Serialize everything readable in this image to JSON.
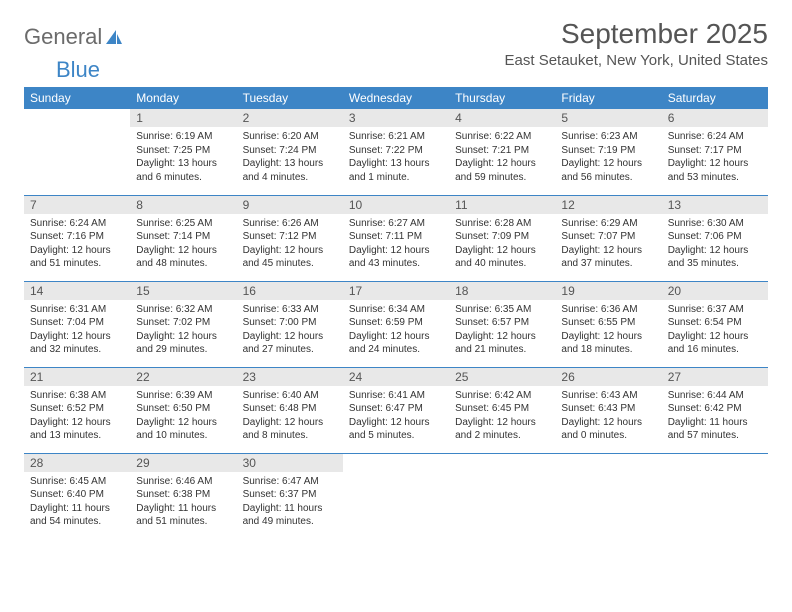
{
  "brand": {
    "part1": "General",
    "part2": "Blue"
  },
  "title": "September 2025",
  "location": "East Setauket, New York, United States",
  "colors": {
    "header_bg": "#3d85c6",
    "header_text": "#ffffff",
    "daynum_bg": "#e8e8e8",
    "border": "#3d85c6",
    "text": "#333333",
    "title_text": "#555555"
  },
  "weekdays": [
    "Sunday",
    "Monday",
    "Tuesday",
    "Wednesday",
    "Thursday",
    "Friday",
    "Saturday"
  ],
  "weeks": [
    [
      {
        "num": "",
        "sunrise": "",
        "sunset": "",
        "daylight": ""
      },
      {
        "num": "1",
        "sunrise": "Sunrise: 6:19 AM",
        "sunset": "Sunset: 7:25 PM",
        "daylight": "Daylight: 13 hours and 6 minutes."
      },
      {
        "num": "2",
        "sunrise": "Sunrise: 6:20 AM",
        "sunset": "Sunset: 7:24 PM",
        "daylight": "Daylight: 13 hours and 4 minutes."
      },
      {
        "num": "3",
        "sunrise": "Sunrise: 6:21 AM",
        "sunset": "Sunset: 7:22 PM",
        "daylight": "Daylight: 13 hours and 1 minute."
      },
      {
        "num": "4",
        "sunrise": "Sunrise: 6:22 AM",
        "sunset": "Sunset: 7:21 PM",
        "daylight": "Daylight: 12 hours and 59 minutes."
      },
      {
        "num": "5",
        "sunrise": "Sunrise: 6:23 AM",
        "sunset": "Sunset: 7:19 PM",
        "daylight": "Daylight: 12 hours and 56 minutes."
      },
      {
        "num": "6",
        "sunrise": "Sunrise: 6:24 AM",
        "sunset": "Sunset: 7:17 PM",
        "daylight": "Daylight: 12 hours and 53 minutes."
      }
    ],
    [
      {
        "num": "7",
        "sunrise": "Sunrise: 6:24 AM",
        "sunset": "Sunset: 7:16 PM",
        "daylight": "Daylight: 12 hours and 51 minutes."
      },
      {
        "num": "8",
        "sunrise": "Sunrise: 6:25 AM",
        "sunset": "Sunset: 7:14 PM",
        "daylight": "Daylight: 12 hours and 48 minutes."
      },
      {
        "num": "9",
        "sunrise": "Sunrise: 6:26 AM",
        "sunset": "Sunset: 7:12 PM",
        "daylight": "Daylight: 12 hours and 45 minutes."
      },
      {
        "num": "10",
        "sunrise": "Sunrise: 6:27 AM",
        "sunset": "Sunset: 7:11 PM",
        "daylight": "Daylight: 12 hours and 43 minutes."
      },
      {
        "num": "11",
        "sunrise": "Sunrise: 6:28 AM",
        "sunset": "Sunset: 7:09 PM",
        "daylight": "Daylight: 12 hours and 40 minutes."
      },
      {
        "num": "12",
        "sunrise": "Sunrise: 6:29 AM",
        "sunset": "Sunset: 7:07 PM",
        "daylight": "Daylight: 12 hours and 37 minutes."
      },
      {
        "num": "13",
        "sunrise": "Sunrise: 6:30 AM",
        "sunset": "Sunset: 7:06 PM",
        "daylight": "Daylight: 12 hours and 35 minutes."
      }
    ],
    [
      {
        "num": "14",
        "sunrise": "Sunrise: 6:31 AM",
        "sunset": "Sunset: 7:04 PM",
        "daylight": "Daylight: 12 hours and 32 minutes."
      },
      {
        "num": "15",
        "sunrise": "Sunrise: 6:32 AM",
        "sunset": "Sunset: 7:02 PM",
        "daylight": "Daylight: 12 hours and 29 minutes."
      },
      {
        "num": "16",
        "sunrise": "Sunrise: 6:33 AM",
        "sunset": "Sunset: 7:00 PM",
        "daylight": "Daylight: 12 hours and 27 minutes."
      },
      {
        "num": "17",
        "sunrise": "Sunrise: 6:34 AM",
        "sunset": "Sunset: 6:59 PM",
        "daylight": "Daylight: 12 hours and 24 minutes."
      },
      {
        "num": "18",
        "sunrise": "Sunrise: 6:35 AM",
        "sunset": "Sunset: 6:57 PM",
        "daylight": "Daylight: 12 hours and 21 minutes."
      },
      {
        "num": "19",
        "sunrise": "Sunrise: 6:36 AM",
        "sunset": "Sunset: 6:55 PM",
        "daylight": "Daylight: 12 hours and 18 minutes."
      },
      {
        "num": "20",
        "sunrise": "Sunrise: 6:37 AM",
        "sunset": "Sunset: 6:54 PM",
        "daylight": "Daylight: 12 hours and 16 minutes."
      }
    ],
    [
      {
        "num": "21",
        "sunrise": "Sunrise: 6:38 AM",
        "sunset": "Sunset: 6:52 PM",
        "daylight": "Daylight: 12 hours and 13 minutes."
      },
      {
        "num": "22",
        "sunrise": "Sunrise: 6:39 AM",
        "sunset": "Sunset: 6:50 PM",
        "daylight": "Daylight: 12 hours and 10 minutes."
      },
      {
        "num": "23",
        "sunrise": "Sunrise: 6:40 AM",
        "sunset": "Sunset: 6:48 PM",
        "daylight": "Daylight: 12 hours and 8 minutes."
      },
      {
        "num": "24",
        "sunrise": "Sunrise: 6:41 AM",
        "sunset": "Sunset: 6:47 PM",
        "daylight": "Daylight: 12 hours and 5 minutes."
      },
      {
        "num": "25",
        "sunrise": "Sunrise: 6:42 AM",
        "sunset": "Sunset: 6:45 PM",
        "daylight": "Daylight: 12 hours and 2 minutes."
      },
      {
        "num": "26",
        "sunrise": "Sunrise: 6:43 AM",
        "sunset": "Sunset: 6:43 PM",
        "daylight": "Daylight: 12 hours and 0 minutes."
      },
      {
        "num": "27",
        "sunrise": "Sunrise: 6:44 AM",
        "sunset": "Sunset: 6:42 PM",
        "daylight": "Daylight: 11 hours and 57 minutes."
      }
    ],
    [
      {
        "num": "28",
        "sunrise": "Sunrise: 6:45 AM",
        "sunset": "Sunset: 6:40 PM",
        "daylight": "Daylight: 11 hours and 54 minutes."
      },
      {
        "num": "29",
        "sunrise": "Sunrise: 6:46 AM",
        "sunset": "Sunset: 6:38 PM",
        "daylight": "Daylight: 11 hours and 51 minutes."
      },
      {
        "num": "30",
        "sunrise": "Sunrise: 6:47 AM",
        "sunset": "Sunset: 6:37 PM",
        "daylight": "Daylight: 11 hours and 49 minutes."
      },
      {
        "num": "",
        "sunrise": "",
        "sunset": "",
        "daylight": ""
      },
      {
        "num": "",
        "sunrise": "",
        "sunset": "",
        "daylight": ""
      },
      {
        "num": "",
        "sunrise": "",
        "sunset": "",
        "daylight": ""
      },
      {
        "num": "",
        "sunrise": "",
        "sunset": "",
        "daylight": ""
      }
    ]
  ]
}
